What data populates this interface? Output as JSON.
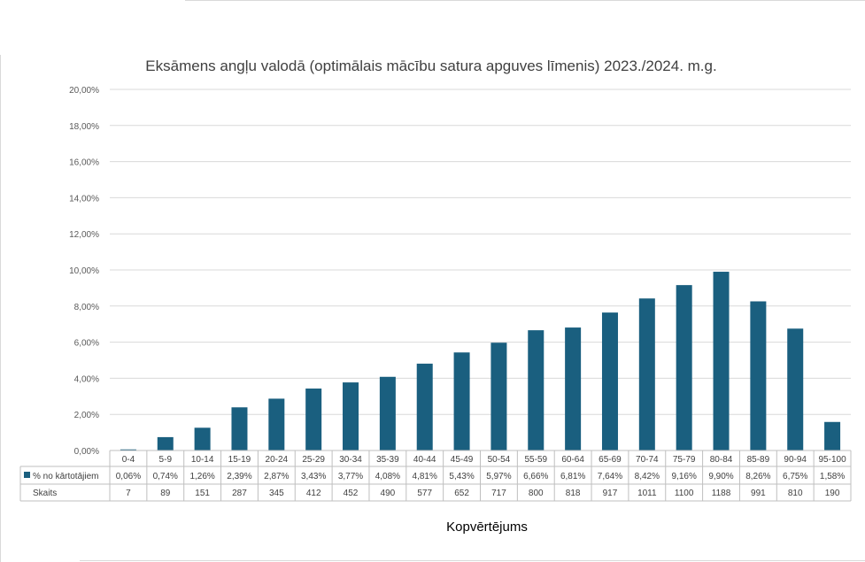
{
  "chart_data": {
    "type": "bar",
    "title": "Eksāmens angļu valodā (optimālais mācību satura apguves līmenis) 2023./2024. m.g.",
    "xlabel": "Kopvērtējums",
    "ylabel": "",
    "ylim": [
      0,
      20
    ],
    "y_tick_labels": [
      "0,00%",
      "2,00%",
      "4,00%",
      "6,00%",
      "8,00%",
      "10,00%",
      "12,00%",
      "14,00%",
      "16,00%",
      "18,00%",
      "20,00%"
    ],
    "grid": true,
    "bar_color": "#1a5f7f",
    "categories": [
      "0-4",
      "5-9",
      "10-14",
      "15-19",
      "20-24",
      "25-29",
      "30-34",
      "35-39",
      "40-44",
      "45-49",
      "50-54",
      "55-59",
      "60-64",
      "65-69",
      "70-74",
      "75-79",
      "80-84",
      "85-89",
      "90-94",
      "95-100"
    ],
    "series": [
      {
        "name": "% no kārtotājiem",
        "values": [
          0.06,
          0.74,
          1.26,
          2.39,
          2.87,
          3.43,
          3.77,
          4.08,
          4.81,
          5.43,
          5.97,
          6.66,
          6.81,
          7.64,
          8.42,
          9.16,
          9.9,
          8.26,
          6.75,
          1.58
        ],
        "labels": [
          "0,06%",
          "0,74%",
          "1,26%",
          "2,39%",
          "2,87%",
          "3,43%",
          "3,77%",
          "4,08%",
          "4,81%",
          "5,43%",
          "5,97%",
          "6,66%",
          "6,81%",
          "7,64%",
          "8,42%",
          "9,16%",
          "9,90%",
          "8,26%",
          "6,75%",
          "1,58%"
        ]
      }
    ],
    "table_rows": [
      {
        "label": "Skaits",
        "values": [
          "7",
          "89",
          "151",
          "287",
          "345",
          "412",
          "452",
          "490",
          "577",
          "652",
          "717",
          "800",
          "818",
          "917",
          "1011",
          "1100",
          "1188",
          "991",
          "810",
          "190"
        ]
      }
    ]
  }
}
